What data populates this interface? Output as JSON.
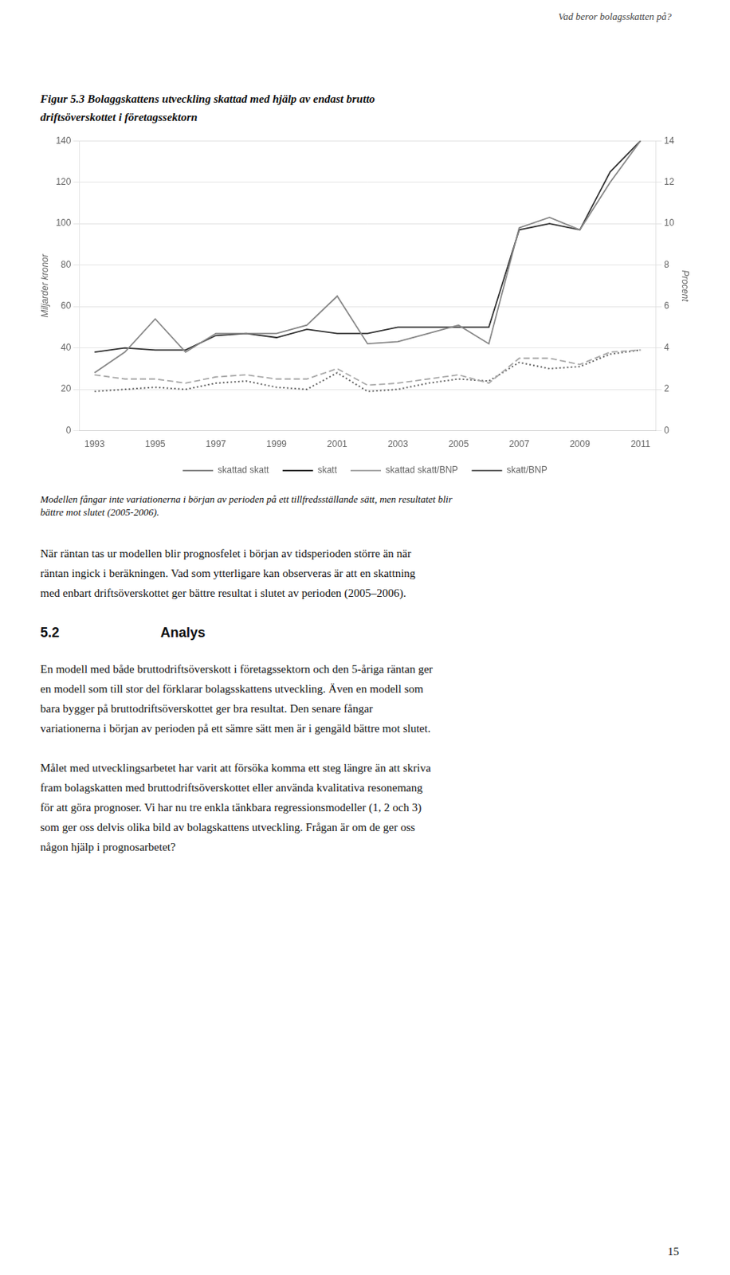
{
  "page_header": "Vad beror bolagsskatten på?",
  "chart_data": {
    "type": "line",
    "title": [
      "Figur 5.3 Bolaggskattens utveckling skattad med hjälp av endast brutto",
      "driftsöverskottet i företagssektorn"
    ],
    "y_label": "Miljarder kronor",
    "y2_label": "Procent",
    "x": [
      1993,
      1994,
      1995,
      1996,
      1997,
      1998,
      1999,
      2000,
      2001,
      2002,
      2003,
      2004,
      2005,
      2006,
      2007,
      2008,
      2009,
      2010,
      2011
    ],
    "xlim": [
      1992.5,
      2011.5
    ],
    "xticks": [
      1993,
      1995,
      1997,
      1999,
      2001,
      2003,
      2005,
      2007,
      2009,
      2011
    ],
    "ylim": [
      0,
      140
    ],
    "yticks": [
      0,
      20,
      40,
      60,
      80,
      100,
      120,
      140
    ],
    "y2lim": [
      0,
      14
    ],
    "y2ticks": [
      0,
      2,
      4,
      6,
      8,
      10,
      12,
      14
    ],
    "grid": true,
    "legend": "bottom",
    "series": [
      {
        "name": "skattad skatt",
        "color": "#888888",
        "line_style": "solid",
        "values": [
          28,
          38,
          54,
          38,
          47,
          47,
          47,
          51,
          65,
          42,
          43,
          47,
          51,
          42,
          98,
          103,
          97,
          120,
          140
        ]
      },
      {
        "name": "skatt",
        "color": "#333333",
        "line_style": "solid",
        "values": [
          38,
          40,
          39,
          39,
          46,
          47,
          45,
          49,
          47,
          47,
          50,
          50,
          50,
          50,
          97,
          100,
          97,
          125,
          140
        ]
      },
      {
        "name": "skattad skatt/BNP",
        "color": "#aaaaaa",
        "line_style": "dashed",
        "axis": "y2",
        "values": [
          2.7,
          2.5,
          2.5,
          2.3,
          2.6,
          2.7,
          2.5,
          2.5,
          3.0,
          2.2,
          2.3,
          2.5,
          2.7,
          2.3,
          3.5,
          3.5,
          3.2,
          3.8,
          3.9
        ]
      },
      {
        "name": "skatt/BNP",
        "color": "#666666",
        "line_style": "dotted",
        "axis": "y2",
        "values": [
          1.9,
          2.0,
          2.1,
          2.0,
          2.3,
          2.4,
          2.1,
          2.0,
          2.8,
          1.9,
          2.0,
          2.3,
          2.5,
          2.4,
          3.3,
          3.0,
          3.1,
          3.7,
          3.9
        ]
      }
    ]
  },
  "caption": [
    "Modellen fångar inte variationerna i början av perioden på ett tillfredsställande sätt, men resultatet blir",
    "bättre mot slutet (2005-2006)."
  ],
  "paragraphs_before_section": [
    [
      "När räntan tas ur modellen blir prognosfelet i början av tidsperioden större än när",
      "räntan ingick i beräkningen. Vad som ytterligare kan observeras är att en skattning",
      "med enbart driftsöverskottet ger bättre resultat i slutet av perioden (2005–2006)."
    ]
  ],
  "section_number": "5.2",
  "section_title": "Analys",
  "paragraphs_after_section": [
    [
      "En modell med både bruttodriftsöverskott i företagssektorn och den 5-åriga räntan ger",
      "en modell som till stor del förklarar bolagsskattens utveckling. Även en modell som",
      "bara bygger på bruttodriftsöverskottet ger bra resultat. Den senare fångar",
      "variationerna i början av perioden på ett sämre sätt men är i gengäld bättre mot slutet."
    ],
    [
      "Målet med utvecklingsarbetet har varit att försöka komma ett steg längre än att skriva",
      "fram bolagskatten med bruttodriftsöverskottet eller använda kvalitativa resonemang",
      "för att göra prognoser. Vi har nu tre enkla tänkbara regressionsmodeller (1, 2 och 3)",
      "som ger oss delvis olika bild av bolagskattens utveckling. Frågan är om de ger oss",
      "någon hjälp i prognosarbetet?"
    ]
  ],
  "page_number": "15"
}
